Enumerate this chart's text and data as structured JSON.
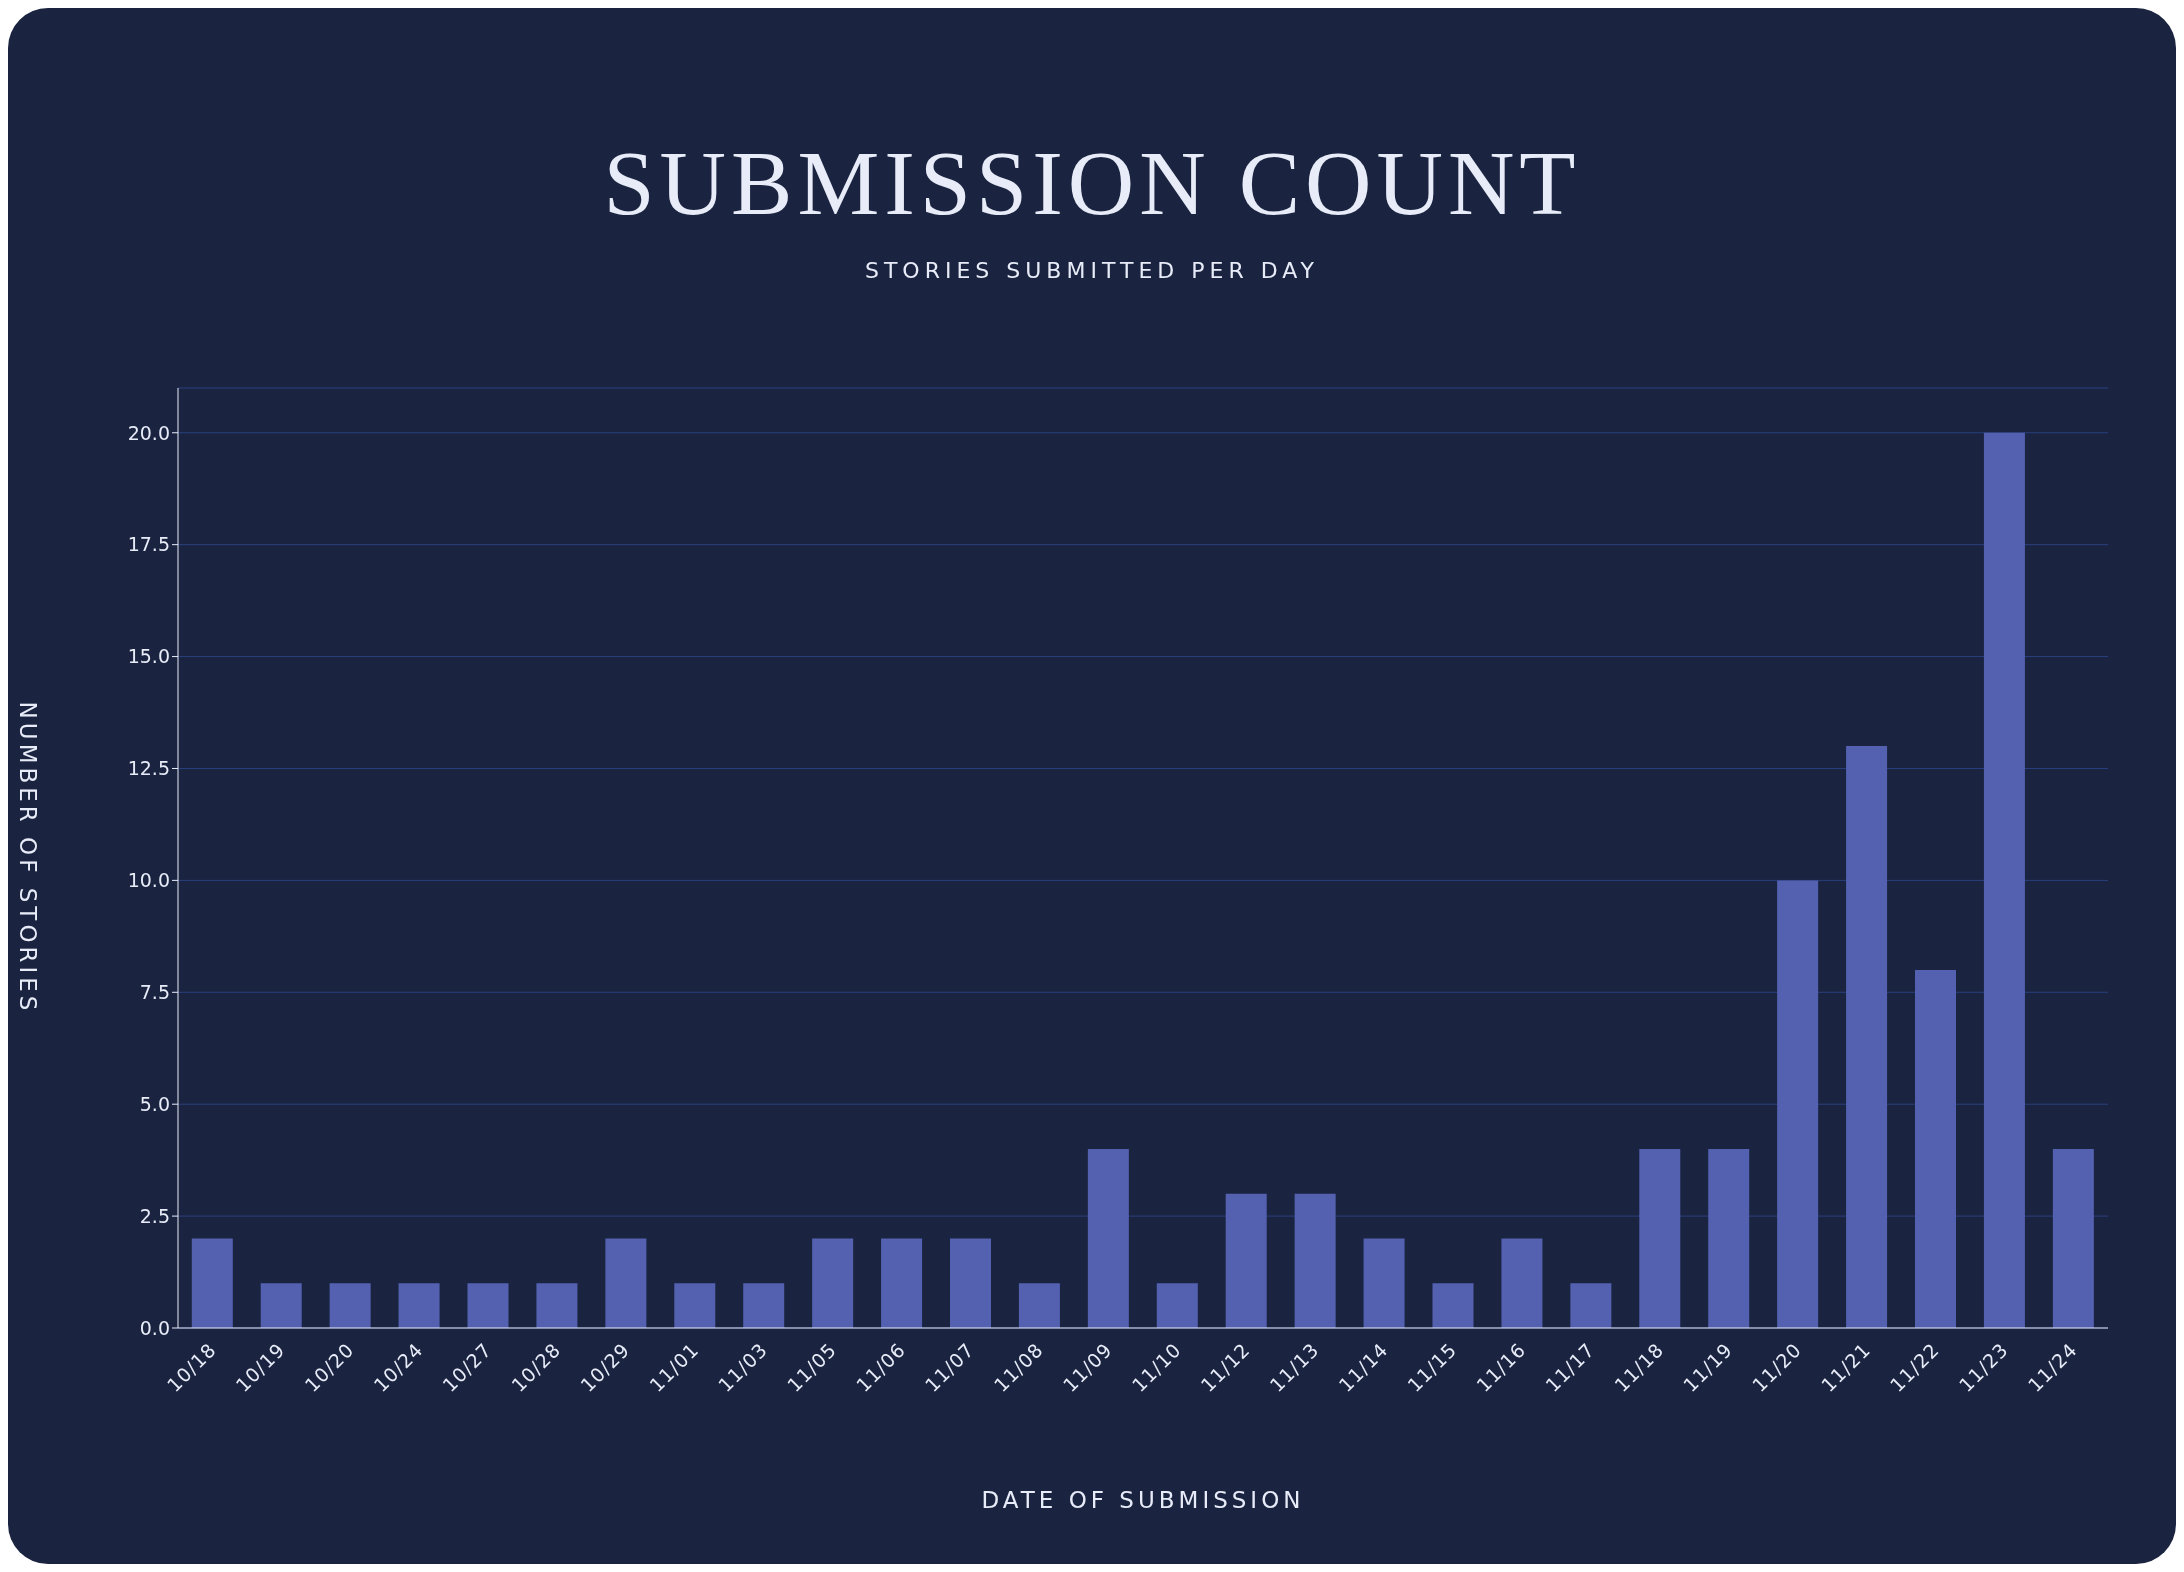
{
  "chart_data": {
    "type": "bar",
    "title": "SUBMISSION COUNT",
    "subtitle": "STORIES SUBMITTED PER DAY",
    "xlabel": "DATE OF SUBMISSION",
    "ylabel": "NUMBER OF STORIES",
    "categories": [
      "10/18",
      "10/19",
      "10/20",
      "10/24",
      "10/27",
      "10/28",
      "10/29",
      "11/01",
      "11/03",
      "11/05",
      "11/06",
      "11/07",
      "11/08",
      "11/09",
      "11/10",
      "11/12",
      "11/13",
      "11/14",
      "11/15",
      "11/16",
      "11/17",
      "11/18",
      "11/19",
      "11/20",
      "11/21",
      "11/22",
      "11/23",
      "11/24"
    ],
    "values": [
      2,
      1,
      1,
      1,
      1,
      1,
      2,
      1,
      1,
      2,
      2,
      2,
      1,
      4,
      1,
      3,
      3,
      2,
      1,
      2,
      1,
      4,
      4,
      10,
      13,
      8,
      20,
      4
    ],
    "color": "#5361b0",
    "ylim": [
      0,
      21
    ],
    "yticks": [
      {
        "value": 0,
        "label": "0.0"
      },
      {
        "value": 2.5,
        "label": "2.5"
      },
      {
        "value": 5,
        "label": "5.0"
      },
      {
        "value": 7.5,
        "label": "7.5"
      },
      {
        "value": 10,
        "label": "10.0"
      },
      {
        "value": 12.5,
        "label": "12.5"
      },
      {
        "value": 15,
        "label": "15.0"
      },
      {
        "value": 17.5,
        "label": "17.5"
      },
      {
        "value": 20,
        "label": "20.0"
      }
    ],
    "grid": "y"
  }
}
